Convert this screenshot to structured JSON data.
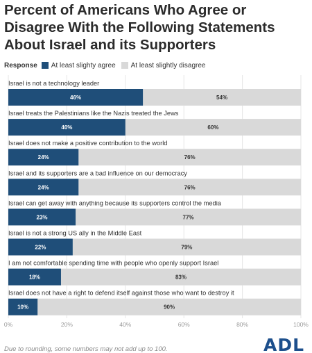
{
  "title": "Percent of Americans Who Agree or Disagree With the Following Statements About Israel and its Supporters",
  "legend": {
    "label": "Response",
    "items": [
      {
        "name": "At least slighty agree",
        "color": "#1f4e79"
      },
      {
        "name": "At least slightly disagree",
        "color": "#d9d9d9"
      }
    ]
  },
  "footnote": "Due to rounding, some numbers may not add up to 100.",
  "logo": "ADL",
  "chart_data": {
    "type": "bar",
    "orientation": "horizontal",
    "stacked": true,
    "categories": [
      "Israel is not a technology leader",
      "Israel treats the Palestinians like the Nazis treated the Jews",
      "Israel does not make a positive contribution to the world",
      "Israel and its supporters are a bad influence on our democracy",
      "Israel can get away with anything because its supporters control the media",
      "Israel is not a strong US ally in the Middle East",
      "I am not comfortable spending time with people who openly support Israel",
      "Israel does not have a right to defend itself against those who want to destroy it"
    ],
    "series": [
      {
        "name": "At least slighty agree",
        "color": "#1f4e79",
        "values": [
          46,
          40,
          24,
          24,
          23,
          22,
          18,
          10
        ]
      },
      {
        "name": "At least slightly disagree",
        "color": "#d9d9d9",
        "values": [
          54,
          60,
          76,
          76,
          77,
          79,
          83,
          90
        ]
      }
    ],
    "xlim": [
      0,
      100
    ],
    "xticks": [
      "0%",
      "20%",
      "40%",
      "60%",
      "80%",
      "100%"
    ],
    "value_suffix": "%",
    "grid": true
  }
}
